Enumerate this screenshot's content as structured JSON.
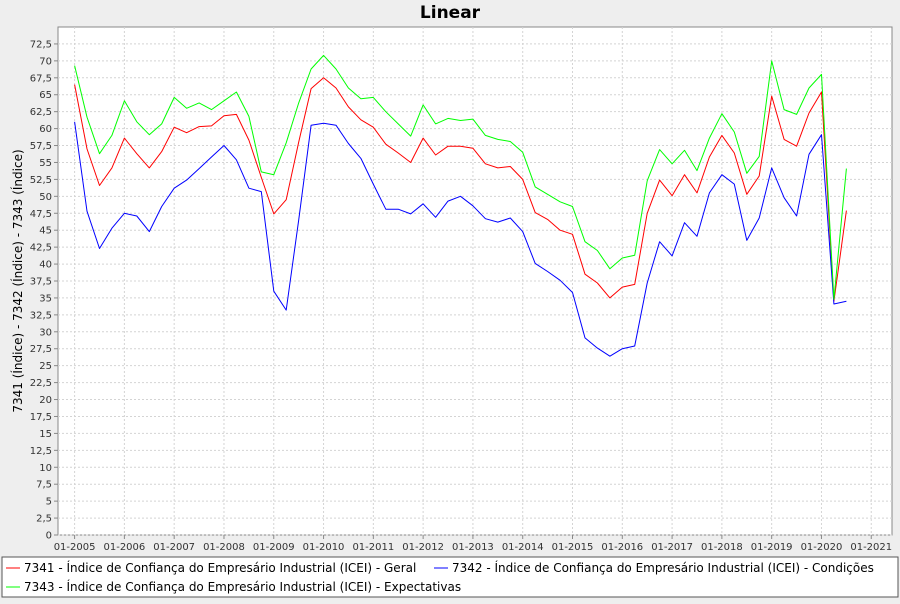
{
  "chart_data": {
    "type": "line",
    "title": "Linear",
    "ylabel": "7341 (Índice) - 7342 (Índice) - 7343 (Índice)",
    "xlabel": "",
    "ylim": [
      0,
      75
    ],
    "yticks": [
      "0",
      "2,5",
      "5",
      "7,5",
      "10",
      "12,5",
      "15",
      "17,5",
      "20",
      "22,5",
      "25",
      "27,5",
      "30",
      "32,5",
      "35",
      "37,5",
      "40",
      "42,5",
      "45",
      "47,5",
      "50",
      "52,5",
      "55",
      "57,5",
      "60",
      "62,5",
      "65",
      "67,5",
      "70",
      "72,5"
    ],
    "xlim": [
      "2004-09",
      "2021-06"
    ],
    "xticks": [
      "01-2005",
      "01-2006",
      "01-2007",
      "01-2008",
      "01-2009",
      "01-2010",
      "01-2011",
      "01-2012",
      "01-2013",
      "01-2014",
      "01-2015",
      "01-2016",
      "01-2017",
      "01-2018",
      "01-2019",
      "01-2020",
      "01-2021"
    ],
    "grid": true,
    "legend_position": "bottom",
    "x": [
      "2005-01",
      "2005-04",
      "2005-07",
      "2005-10",
      "2006-01",
      "2006-04",
      "2006-07",
      "2006-10",
      "2007-01",
      "2007-04",
      "2007-07",
      "2007-10",
      "2008-01",
      "2008-04",
      "2008-07",
      "2008-10",
      "2009-01",
      "2009-04",
      "2009-07",
      "2009-10",
      "2010-01",
      "2010-04",
      "2010-07",
      "2010-10",
      "2011-01",
      "2011-04",
      "2011-07",
      "2011-10",
      "2012-01",
      "2012-04",
      "2012-07",
      "2012-10",
      "2013-01",
      "2013-04",
      "2013-07",
      "2013-10",
      "2014-01",
      "2014-04",
      "2014-07",
      "2014-10",
      "2015-01",
      "2015-04",
      "2015-07",
      "2015-10",
      "2016-01",
      "2016-04",
      "2016-07",
      "2016-10",
      "2017-01",
      "2017-04",
      "2017-07",
      "2017-10",
      "2018-01",
      "2018-04",
      "2018-07",
      "2018-10",
      "2019-01",
      "2019-04",
      "2019-07",
      "2019-10",
      "2020-01",
      "2020-04",
      "2020-07"
    ],
    "series": [
      {
        "name": "7341 - Índice de Confiança do Empresário Industrial (ICEI) - Geral",
        "color": "#ff0000",
        "values": [
          66.5,
          57.0,
          51.6,
          54.2,
          58.6,
          56.3,
          54.2,
          56.6,
          60.2,
          59.4,
          60.3,
          60.4,
          61.9,
          62.1,
          58.3,
          52.8,
          47.4,
          49.5,
          58.0,
          65.9,
          67.5,
          66.0,
          63.2,
          61.3,
          60.2,
          57.7,
          56.4,
          55.0,
          58.6,
          56.1,
          57.4,
          57.4,
          57.1,
          54.8,
          54.2,
          54.4,
          52.5,
          47.6,
          46.6,
          45.0,
          44.4,
          38.5,
          37.2,
          35.0,
          36.6,
          37.0,
          47.5,
          52.4,
          50.1,
          53.2,
          50.5,
          55.8,
          59.0,
          56.4,
          50.3,
          53.0,
          64.8,
          58.4,
          57.4,
          62.3,
          65.4,
          34.5,
          47.9
        ]
      },
      {
        "name": "7342 - Índice de Confiança do Empresário Industrial (ICEI) - Condições",
        "color": "#0000ff",
        "values": [
          61.0,
          47.8,
          42.3,
          45.3,
          47.5,
          47.1,
          44.8,
          48.5,
          51.2,
          52.4,
          54.1,
          55.8,
          57.5,
          55.4,
          51.2,
          50.7,
          36.0,
          33.2,
          46.5,
          60.5,
          60.8,
          60.5,
          57.8,
          55.6,
          51.8,
          48.1,
          48.1,
          47.4,
          48.9,
          46.9,
          49.3,
          50.0,
          48.6,
          46.7,
          46.2,
          46.8,
          44.8,
          40.1,
          38.9,
          37.6,
          35.8,
          29.1,
          27.6,
          26.4,
          27.5,
          27.9,
          37.2,
          43.3,
          41.2,
          46.1,
          44.1,
          50.5,
          53.2,
          51.8,
          43.5,
          46.8,
          54.2,
          49.8,
          47.1,
          56.2,
          59.1,
          34.1,
          34.5
        ]
      },
      {
        "name": "7343 - Índice de Confiança do Empresário Industrial (ICEI) - Expectativas",
        "color": "#00ff00",
        "values": [
          69.3,
          61.7,
          56.3,
          59.0,
          64.1,
          61.0,
          59.1,
          60.7,
          64.6,
          63.0,
          63.8,
          62.8,
          64.1,
          65.4,
          61.8,
          53.6,
          53.2,
          57.9,
          63.8,
          68.8,
          70.8,
          68.8,
          66.0,
          64.4,
          64.6,
          62.5,
          60.7,
          58.9,
          63.5,
          60.7,
          61.5,
          61.2,
          61.4,
          59.0,
          58.4,
          58.1,
          56.5,
          51.4,
          50.3,
          49.2,
          48.5,
          43.3,
          42.0,
          39.3,
          40.9,
          41.3,
          52.3,
          56.9,
          54.8,
          56.8,
          53.8,
          58.6,
          62.2,
          59.5,
          53.4,
          55.9,
          70.0,
          62.8,
          62.1,
          66.0,
          68.0,
          34.8,
          54.1
        ]
      }
    ]
  }
}
